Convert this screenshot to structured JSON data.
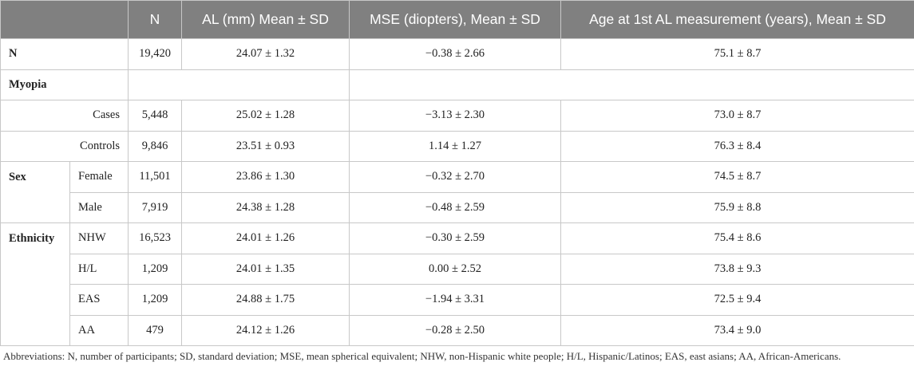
{
  "table": {
    "header": [
      "N",
      "AL (mm) Mean ± SD",
      "MSE (diopters), Mean ± SD",
      "Age at 1st AL measurement (years), Mean ± SD"
    ],
    "rows": [
      {
        "group": "N",
        "values": [
          "19,420",
          "24.07 ± 1.32",
          "−0.38 ± 2.66",
          "75.1 ± 8.7"
        ]
      },
      {
        "group": "Myopia"
      },
      {
        "label": "Cases",
        "values": [
          "5,448",
          "25.02 ± 1.28",
          "−3.13 ± 2.30",
          "73.0 ± 8.7"
        ]
      },
      {
        "label": "Controls",
        "values": [
          "9,846",
          "23.51 ± 0.93",
          "1.14 ± 1.27",
          "76.3 ± 8.4"
        ]
      },
      {
        "group": "Sex",
        "label": "Female",
        "values": [
          "11,501",
          "23.86 ± 1.30",
          "−0.32 ± 2.70",
          "74.5 ± 8.7"
        ]
      },
      {
        "label": "Male",
        "values": [
          "7,919",
          "24.38 ± 1.28",
          "−0.48 ± 2.59",
          "75.9 ± 8.8"
        ]
      },
      {
        "group": "Ethnicity",
        "label": "NHW",
        "values": [
          "16,523",
          "24.01 ± 1.26",
          "−0.30 ± 2.59",
          "75.4 ± 8.6"
        ]
      },
      {
        "label": "H/L",
        "values": [
          "1,209",
          "24.01 ± 1.35",
          "0.00 ± 2.52",
          "73.8 ± 9.3"
        ]
      },
      {
        "label": "EAS",
        "values": [
          "1,209",
          "24.88 ± 1.75",
          "−1.94 ± 3.31",
          "72.5 ± 9.4"
        ]
      },
      {
        "label": "AA",
        "values": [
          "479",
          "24.12 ± 1.26",
          "−0.28 ± 2.50",
          "73.4 ± 9.0"
        ]
      }
    ]
  },
  "footnote": "Abbreviations: N, number of participants; SD, standard deviation; MSE, mean spherical equivalent; NHW, non-Hispanic white people; H/L, Hispanic/Latinos; EAS, east asians; AA, African-Americans."
}
